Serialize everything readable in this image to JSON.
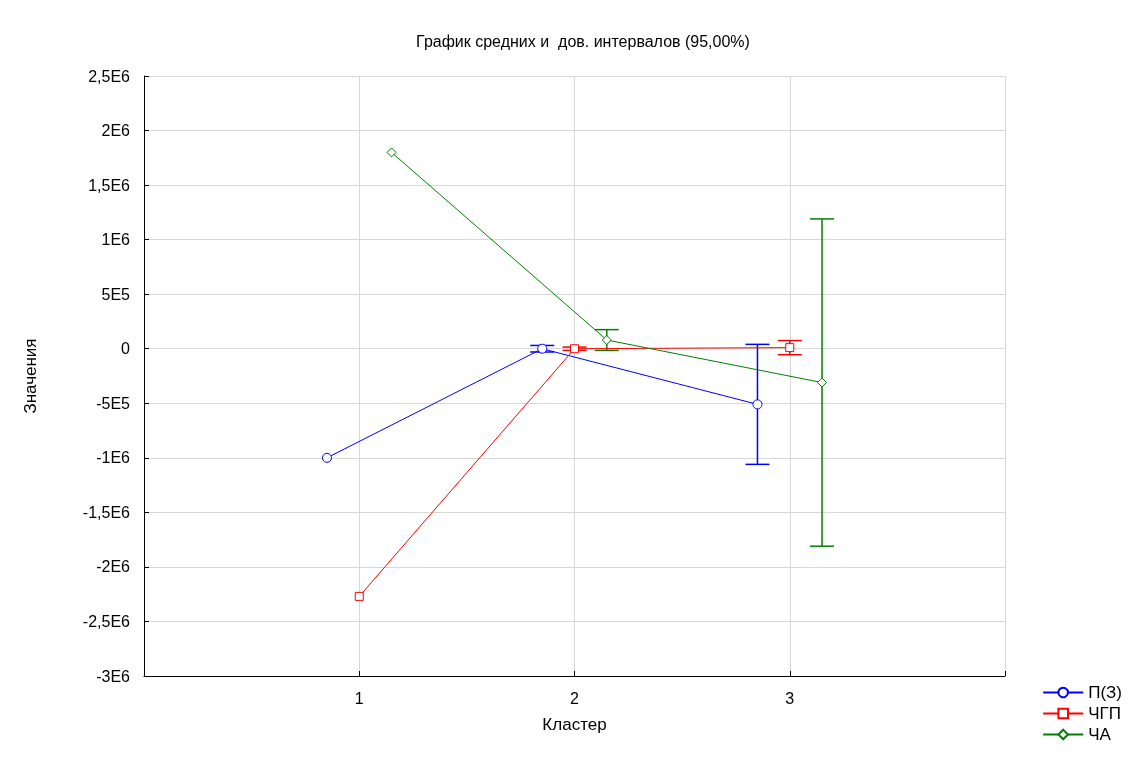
{
  "chart_data": {
    "type": "line",
    "title": "График средних и  дов. интервалов (95,00%)",
    "xlabel": "Кластер",
    "ylabel": "Значения",
    "xlim": [
      0,
      4
    ],
    "xticks": [
      {
        "value": 0,
        "label": null
      },
      1,
      2,
      3,
      {
        "value": 4,
        "label": null
      }
    ],
    "ylim": [
      -3000000,
      2500000
    ],
    "yticks": [
      {
        "value": -3000000,
        "label": "-3E6"
      },
      {
        "value": -2500000,
        "label": "-2,5E6"
      },
      {
        "value": -2000000,
        "label": "-2E6"
      },
      {
        "value": -1500000,
        "label": "-1,5E6"
      },
      {
        "value": -1000000,
        "label": "-1E6"
      },
      {
        "value": -500000,
        "label": "-5E5"
      },
      {
        "value": 0,
        "label": "0"
      },
      {
        "value": 500000,
        "label": "5E5"
      },
      {
        "value": 1000000,
        "label": "1E6"
      },
      {
        "value": 1500000,
        "label": "1,5E6"
      },
      {
        "value": 2000000,
        "label": "2E6"
      },
      {
        "value": 2500000,
        "label": "2,5E6"
      }
    ],
    "grid": true,
    "legend": "bottom right",
    "series": [
      {
        "name": "П(З)",
        "color": "#0000ff",
        "marker": "circle",
        "x": [
          0.85,
          1.85,
          2.85
        ],
        "values": [
          -1000000,
          0,
          -510000
        ],
        "errors": [
          null,
          30000,
          550000
        ]
      },
      {
        "name": "ЧГП",
        "color": "#ff0000",
        "marker": "square",
        "x": [
          1,
          2,
          3
        ],
        "values": [
          -2270000,
          0,
          10000
        ],
        "errors": [
          null,
          15000,
          65000
        ]
      },
      {
        "name": "ЧА",
        "color": "#008000",
        "marker": "diamond",
        "x": [
          1.15,
          2.15,
          3.15
        ],
        "values": [
          1800000,
          80000,
          -310000
        ],
        "errors": [
          null,
          95000,
          1500000
        ]
      }
    ]
  }
}
